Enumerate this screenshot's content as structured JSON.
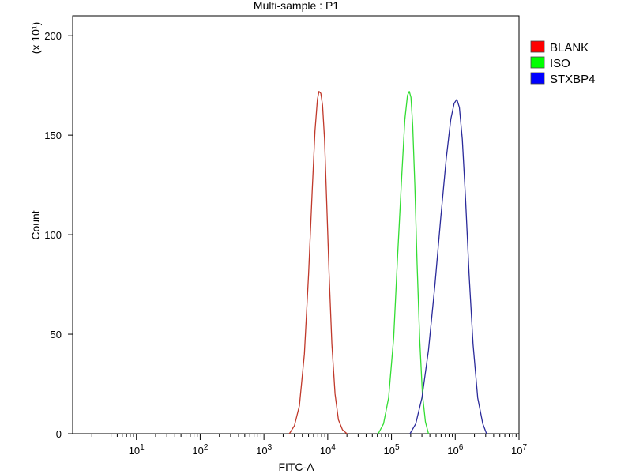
{
  "chart_data": {
    "type": "line",
    "title": "Multi-sample : P1",
    "xlabel": "FITC-A",
    "ylabel": "Count",
    "y_multiplier_label": "(x 10¹)",
    "x_scale": "log",
    "xlim": [
      1,
      10000000
    ],
    "ylim": [
      0,
      210
    ],
    "y_ticks": [
      0,
      50,
      100,
      150,
      200
    ],
    "x_ticks": [
      {
        "value": 10,
        "base": "10",
        "exp": "1"
      },
      {
        "value": 100,
        "base": "10",
        "exp": "2"
      },
      {
        "value": 1000,
        "base": "10",
        "exp": "3"
      },
      {
        "value": 10000,
        "base": "10",
        "exp": "4"
      },
      {
        "value": 100000,
        "base": "10",
        "exp": "5"
      },
      {
        "value": 1000000,
        "base": "10",
        "exp": "6"
      },
      {
        "value": 10000000,
        "base": "10",
        "exp": "7"
      }
    ],
    "grid": false,
    "legend_position": "right",
    "series": [
      {
        "name": "BLANK",
        "color": "#c0392b",
        "legend_color": "#ff0000",
        "x": [
          2500,
          3000,
          3600,
          4300,
          5000,
          5700,
          6300,
          6900,
          7300,
          7800,
          8300,
          8900,
          9600,
          10500,
          11600,
          13000,
          14700,
          17000,
          20000
        ],
        "y": [
          0,
          4,
          14,
          40,
          80,
          122,
          152,
          168,
          172,
          171,
          165,
          148,
          118,
          80,
          45,
          20,
          7,
          2,
          0
        ]
      },
      {
        "name": "ISO",
        "color": "#33dd33",
        "legend_color": "#00ff00",
        "x": [
          62000,
          75000,
          90000,
          108000,
          125000,
          145000,
          162000,
          178000,
          190000,
          202000,
          215000,
          232000,
          252000,
          276000,
          305000,
          340000,
          380000
        ],
        "y": [
          0,
          5,
          18,
          48,
          90,
          130,
          158,
          170,
          172,
          169,
          155,
          125,
          85,
          48,
          20,
          6,
          0
        ]
      },
      {
        "name": "STXBP4",
        "color": "#2a2a9a",
        "legend_color": "#0000ff",
        "x": [
          195000,
          240000,
          300000,
          380000,
          480000,
          590000,
          720000,
          850000,
          960000,
          1060000,
          1160000,
          1290000,
          1450000,
          1650000,
          1900000,
          2250000,
          2700000,
          3100000
        ],
        "y": [
          0,
          5,
          18,
          42,
          75,
          108,
          138,
          158,
          166,
          168,
          164,
          148,
          118,
          80,
          45,
          18,
          5,
          0
        ]
      }
    ]
  }
}
